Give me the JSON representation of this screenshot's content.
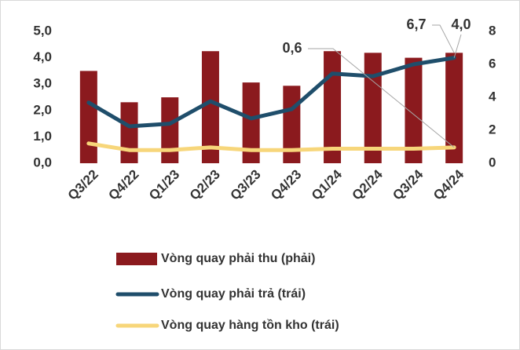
{
  "chart_data": {
    "type": "bar-line",
    "categories": [
      "Q3/22",
      "Q4/22",
      "Q1/23",
      "Q2/23",
      "Q3/23",
      "Q4/23",
      "Q1/24",
      "Q2/24",
      "Q3/24",
      "Q4/24"
    ],
    "series": [
      {
        "name": "Vòng quay phải thu (phải)",
        "type": "bar",
        "axis": "y2",
        "color": "#8b1a1e",
        "values": [
          5.6,
          3.7,
          4.0,
          6.8,
          4.9,
          4.7,
          6.8,
          6.7,
          6.4,
          6.7
        ],
        "value_labels": [
          null,
          null,
          null,
          null,
          null,
          null,
          null,
          null,
          null,
          "6,7"
        ]
      },
      {
        "name": "Vòng quay phải trả (trái)",
        "type": "line",
        "color": "#1f4e6b",
        "values": [
          2.3,
          1.4,
          1.5,
          2.35,
          1.7,
          2.05,
          3.4,
          3.3,
          3.75,
          4.0
        ],
        "value_labels": [
          null,
          null,
          null,
          null,
          null,
          null,
          null,
          null,
          null,
          "4,0"
        ]
      },
      {
        "name": "Vòng quay hàng tồn kho (trái)",
        "type": "line",
        "color": "#f7d67a",
        "values": [
          0.75,
          0.5,
          0.5,
          0.6,
          0.5,
          0.5,
          0.55,
          0.55,
          0.55,
          0.6
        ],
        "value_labels": [
          null,
          null,
          null,
          null,
          null,
          null,
          null,
          null,
          null,
          "0,6"
        ]
      }
    ],
    "ylim": [
      0,
      5
    ],
    "yticks": [
      {
        "value": 0,
        "label": "0,0"
      },
      {
        "value": 1,
        "label": "1,0"
      },
      {
        "value": 2,
        "label": "2,0"
      },
      {
        "value": 3,
        "label": "3,0"
      },
      {
        "value": 4,
        "label": "4,0"
      },
      {
        "value": 5,
        "label": "5,0"
      }
    ],
    "y2lim": [
      0,
      8
    ],
    "y2ticks": [
      0,
      2,
      4,
      6,
      8
    ],
    "legend": "bottom"
  }
}
